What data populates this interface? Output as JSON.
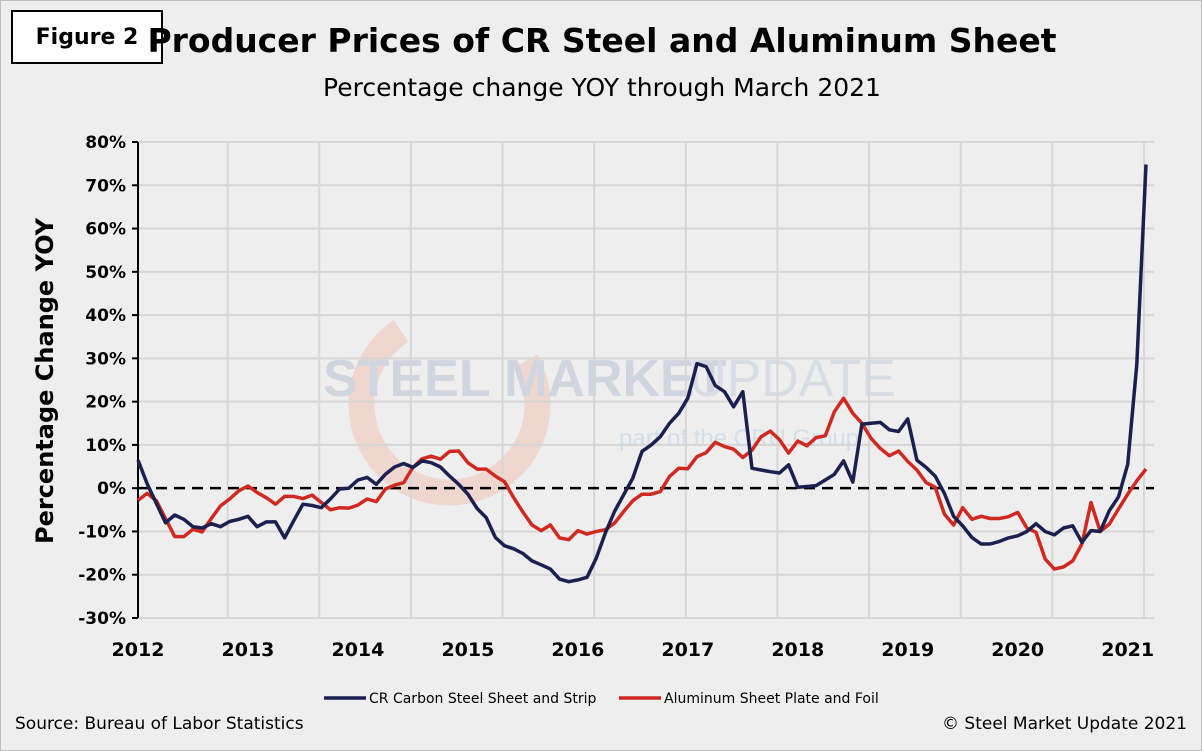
{
  "figure_label": "Figure 2",
  "source": "Source: Bureau of Labor Statistics",
  "copyright": "© Steel Market Update 2021",
  "watermark": {
    "line1a": "STEEL MARKET",
    "line1b": "UPDATE",
    "line2": "part of the CRU Group"
  },
  "colors": {
    "steel": "#1b2050",
    "aluminum": "#d0291f",
    "grid": "#d6d6d6",
    "background": "#eeeeee"
  },
  "chart_data": {
    "type": "line",
    "title": "Producer Prices of CR Steel and Aluminum Sheet",
    "subtitle": "Percentage change YOY through March 2021",
    "xlabel": "",
    "ylabel": "Percentage Change YOY",
    "x_start": "Jan 2012",
    "x_end": "Mar 2021",
    "x_unit": "month",
    "x_tick_labels": [
      "2012",
      "2013",
      "2014",
      "2015",
      "2016",
      "2017",
      "2018",
      "2019",
      "2020",
      "2021"
    ],
    "y_tick_labels": [
      "-30%",
      "-20%",
      "-10%",
      "0%",
      "10%",
      "20%",
      "30%",
      "40%",
      "50%",
      "60%",
      "70%",
      "80%"
    ],
    "ylim": [
      -30,
      80
    ],
    "grid": true,
    "zero_line": "dashed",
    "legend_position": "bottom",
    "series": [
      {
        "name": "CR Carbon Steel Sheet and Strip",
        "color": "#1b2050",
        "values": [
          6.5,
          1,
          -3.5,
          -8,
          -6.2,
          -7.2,
          -8.9,
          -9.2,
          -8.2,
          -8.9,
          -7.7,
          -7.2,
          -6.5,
          -8.9,
          -7.8,
          -7.8,
          -11.5,
          -7.5,
          -3.7,
          -4,
          -4.5,
          -2.5,
          -0.2,
          0,
          1.9,
          2.5,
          0.9,
          3.2,
          4.9,
          5.7,
          4.8,
          6.3,
          5.9,
          4.9,
          2.8,
          0.9,
          -1.4,
          -4.7,
          -6.8,
          -11.4,
          -13.3,
          -14,
          -15.1,
          -16.8,
          -17.7,
          -18.7,
          -21,
          -21.6,
          -21.2,
          -20.6,
          -16.2,
          -10.4,
          -5.4,
          -1.5,
          2.3,
          8.5,
          10,
          11.9,
          15,
          17.3,
          20.8,
          28.8,
          28.1,
          23.7,
          22.3,
          18.8,
          22.3,
          4.6,
          4.2,
          3.8,
          3.5,
          5.4,
          0.2,
          0.4,
          0.6,
          1.9,
          3.2,
          6.3,
          1.4,
          14.8,
          15,
          15.2,
          13.5,
          13.1,
          16,
          6.5,
          4.8,
          2.8,
          -1.2,
          -6.5,
          -8.7,
          -11.4,
          -12.9,
          -12.9,
          -12.3,
          -11.5,
          -11,
          -10,
          -8.2,
          -10,
          -10.8,
          -9.2,
          -8.7,
          -12.5,
          -9.8,
          -10,
          -5.2,
          -2,
          5.5,
          28.6,
          74.8
        ]
      },
      {
        "name": "Aluminum Sheet Plate and Foil",
        "color": "#d0291f",
        "values": [
          -2.8,
          -1.2,
          -2.9,
          -7,
          -11.2,
          -11.2,
          -9.5,
          -10.1,
          -7,
          -4.1,
          -2.5,
          -0.6,
          0.5,
          -1,
          -2.2,
          -3.7,
          -1.9,
          -1.9,
          -2.4,
          -1.6,
          -3.3,
          -5,
          -4.5,
          -4.6,
          -3.9,
          -2.5,
          -3.1,
          -0.2,
          0.7,
          1.3,
          4.8,
          6.8,
          7.4,
          6.7,
          8.5,
          8.6,
          5.9,
          4.4,
          4.4,
          2.8,
          1.5,
          -2.2,
          -5.5,
          -8.5,
          -9.8,
          -8.5,
          -11.5,
          -11.9,
          -9.8,
          -10.6,
          -10,
          -9.6,
          -8.1,
          -5.4,
          -2.9,
          -1.4,
          -1.4,
          -0.8,
          2.7,
          4.6,
          4.5,
          7.3,
          8.2,
          10.6,
          9.6,
          9,
          7.1,
          8.8,
          11.9,
          13.2,
          11.2,
          8.1,
          10.9,
          9.8,
          11.7,
          12.1,
          17.7,
          20.8,
          17.3,
          15,
          11.5,
          9.2,
          7.5,
          8.6,
          6.2,
          4.2,
          1.3,
          0.2,
          -6,
          -8.5,
          -4.5,
          -7.2,
          -6.5,
          -7,
          -7,
          -6.6,
          -5.6,
          -9.2,
          -10.2,
          -16.4,
          -18.7,
          -18.2,
          -16.8,
          -12.9,
          -3.3,
          -10,
          -8.3,
          -4.8,
          -1.4,
          1.7,
          4.4
        ]
      }
    ]
  }
}
